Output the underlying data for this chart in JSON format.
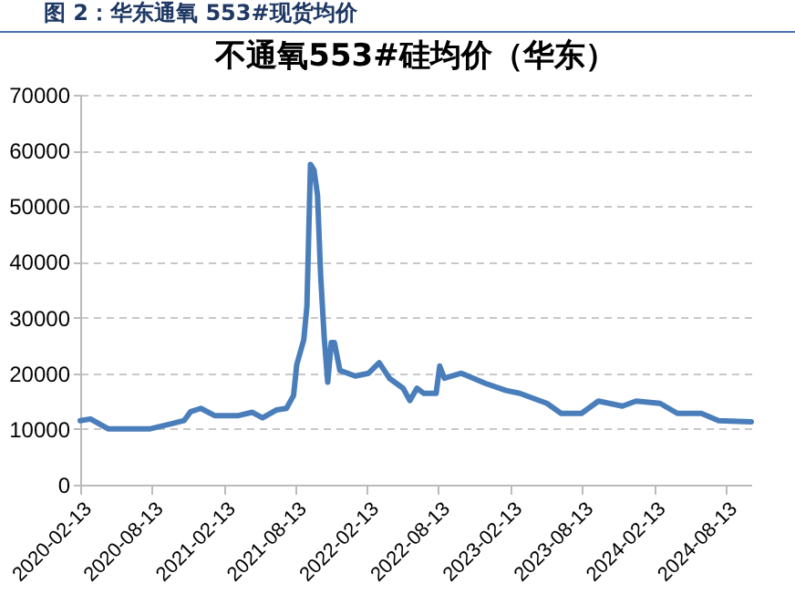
{
  "chart_data": {
    "type": "line",
    "title": "图 2：华东通氧 553#现货均价",
    "subtitle": "不通氧553#硅均价（华东）",
    "x": [
      "2020-02-13",
      "2020-03-10",
      "2020-04-25",
      "2020-08-07",
      "2020-09-30",
      "2020-11-03",
      "2020-11-20",
      "2020-12-16",
      "2021-01-20",
      "2021-03-22",
      "2021-04-26",
      "2021-05-22",
      "2021-06-26",
      "2021-07-22",
      "2021-08-09",
      "2021-08-17",
      "2021-09-04",
      "2021-09-12",
      "2021-09-21",
      "2021-09-30",
      "2021-10-09",
      "2021-10-17",
      "2021-10-26",
      "2021-11-04",
      "2021-11-13",
      "2021-11-21",
      "2021-12-05",
      "2022-01-13",
      "2022-02-16",
      "2022-03-15",
      "2022-04-10",
      "2022-05-15",
      "2022-06-01",
      "2022-06-19",
      "2022-07-06",
      "2022-08-07",
      "2022-08-16",
      "2022-08-28",
      "2022-10-10",
      "2022-12-10",
      "2023-02-01",
      "2023-03-08",
      "2023-05-16",
      "2023-06-21",
      "2023-08-12",
      "2023-09-24",
      "2023-11-24",
      "2023-12-29",
      "2024-02-28",
      "2024-04-12",
      "2024-06-12",
      "2024-07-26",
      "2024-10-17"
    ],
    "series": [
      {
        "color": "#4a7ebb",
        "values": [
          11500,
          11800,
          10000,
          10000,
          10900,
          11500,
          13100,
          13700,
          12400,
          12400,
          13000,
          12000,
          13400,
          13700,
          16000,
          21500,
          26000,
          32000,
          57500,
          56500,
          52000,
          37500,
          26500,
          18400,
          25500,
          25500,
          20500,
          19500,
          20000,
          21900,
          19100,
          17300,
          15100,
          17300,
          16400,
          16400,
          21300,
          19100,
          20000,
          18200,
          16900,
          16400,
          14600,
          12800,
          12800,
          15000,
          14100,
          15000,
          14600,
          12800,
          12800,
          11500,
          11300
        ]
      }
    ],
    "xlim": [
      "2020-02-13",
      "2024-10-17"
    ],
    "xticks": [
      "2020-02-13",
      "2020-08-13",
      "2021-02-13",
      "2021-08-13",
      "2022-02-13",
      "2022-08-13",
      "2023-02-13",
      "2023-08-13",
      "2024-02-13",
      "2024-08-13"
    ],
    "ylim": [
      0,
      70000
    ],
    "yticks": [
      0,
      10000,
      20000,
      30000,
      40000,
      50000,
      60000,
      70000
    ],
    "grid": "y",
    "marker": "none",
    "line_style": "solid"
  }
}
